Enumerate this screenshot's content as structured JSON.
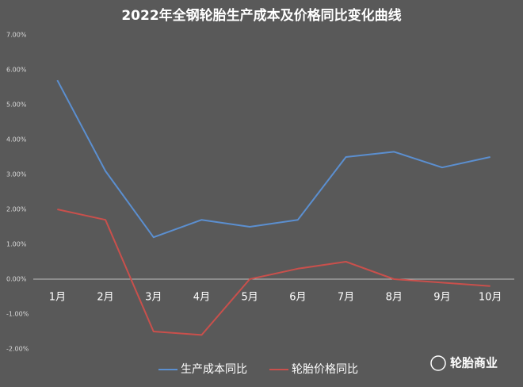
{
  "chart_data": {
    "type": "line",
    "title": "2022年全钢轮胎生产成本及价格同比变化曲线",
    "categories": [
      "1月",
      "2月",
      "3月",
      "4月",
      "5月",
      "6月",
      "7月",
      "8月",
      "9月",
      "10月"
    ],
    "series": [
      {
        "name": "生产成本同比",
        "color": "#5b8fd0",
        "values": [
          5.7,
          3.1,
          1.2,
          1.7,
          1.5,
          1.7,
          3.5,
          3.65,
          3.2,
          3.5
        ]
      },
      {
        "name": "轮胎价格同比",
        "color": "#c9504c",
        "values": [
          2.0,
          1.7,
          -1.5,
          -1.6,
          0.0,
          0.3,
          0.5,
          0.0,
          -0.1,
          -0.2
        ]
      }
    ],
    "ylim": [
      -2,
      7
    ],
    "yticks": [
      {
        "value": -2,
        "label": "-2.00%"
      },
      {
        "value": -1,
        "label": "-1.00%"
      },
      {
        "value": 0,
        "label": "0.00%"
      },
      {
        "value": 1,
        "label": "1.00%"
      },
      {
        "value": 2,
        "label": "2.00%"
      },
      {
        "value": 3,
        "label": "3.00%"
      },
      {
        "value": 4,
        "label": "4.00%"
      },
      {
        "value": 5,
        "label": "5.00%"
      },
      {
        "value": 6,
        "label": "6.00%"
      },
      {
        "value": 7,
        "label": "7.00%"
      }
    ],
    "legend": "bottom",
    "watermark": "轮胎商业"
  }
}
